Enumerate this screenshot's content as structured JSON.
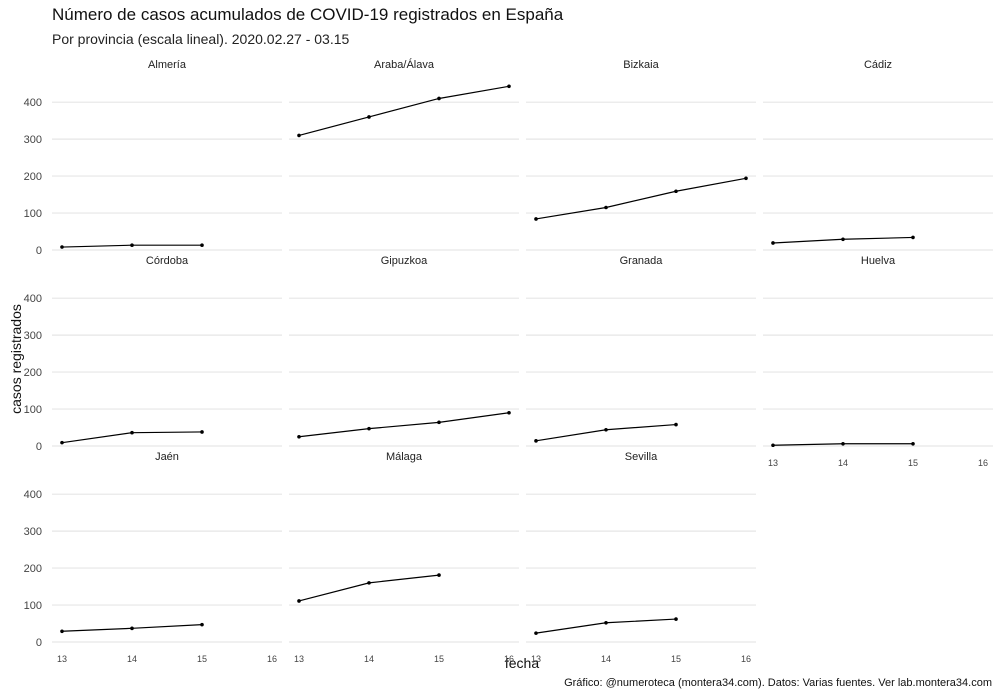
{
  "chart_data": {
    "type": "line",
    "title": "Número de casos acumulados de COVID-19 registrados en España",
    "subtitle": "Por provincia (escala lineal). 2020.02.27 - 03.15",
    "xlabel": "fecha",
    "ylabel": "casos registrados",
    "caption": "Gráfico: @numeroteca (montera34.com). Datos: Varias fuentes. Ver lab.montera34.com",
    "ylim": [
      0,
      460
    ],
    "xlim": [
      13,
      16
    ],
    "yticks": [
      0,
      100,
      200,
      300,
      400
    ],
    "xticks": [
      13,
      14,
      15,
      16
    ],
    "grid": true,
    "line_color": "#000000",
    "panels": [
      {
        "name": "Almería",
        "x": [
          13,
          14,
          15
        ],
        "values": [
          8,
          13,
          13
        ]
      },
      {
        "name": "Araba/Álava",
        "x": [
          13,
          14,
          15,
          16
        ],
        "values": [
          310,
          360,
          410,
          443
        ]
      },
      {
        "name": "Bizkaia",
        "x": [
          13,
          14,
          15,
          16
        ],
        "values": [
          84,
          115,
          159,
          194
        ]
      },
      {
        "name": "Cádiz",
        "x": [
          13,
          14,
          15
        ],
        "values": [
          19,
          29,
          34
        ]
      },
      {
        "name": "Córdoba",
        "x": [
          13,
          14,
          15
        ],
        "values": [
          9,
          36,
          38
        ]
      },
      {
        "name": "Gipuzkoa",
        "x": [
          13,
          14,
          15,
          16
        ],
        "values": [
          25,
          47,
          64,
          90
        ]
      },
      {
        "name": "Granada",
        "x": [
          13,
          14,
          15
        ],
        "values": [
          14,
          44,
          58
        ]
      },
      {
        "name": "Huelva",
        "x": [
          13,
          14,
          15
        ],
        "values": [
          2,
          6,
          6
        ]
      },
      {
        "name": "Jaén",
        "x": [
          13,
          14,
          15
        ],
        "values": [
          29,
          37,
          47
        ]
      },
      {
        "name": "Málaga",
        "x": [
          13,
          14,
          15
        ],
        "values": [
          111,
          160,
          181
        ]
      },
      {
        "name": "Sevilla",
        "x": [
          13,
          14,
          15
        ],
        "values": [
          24,
          52,
          62
        ]
      }
    ]
  }
}
